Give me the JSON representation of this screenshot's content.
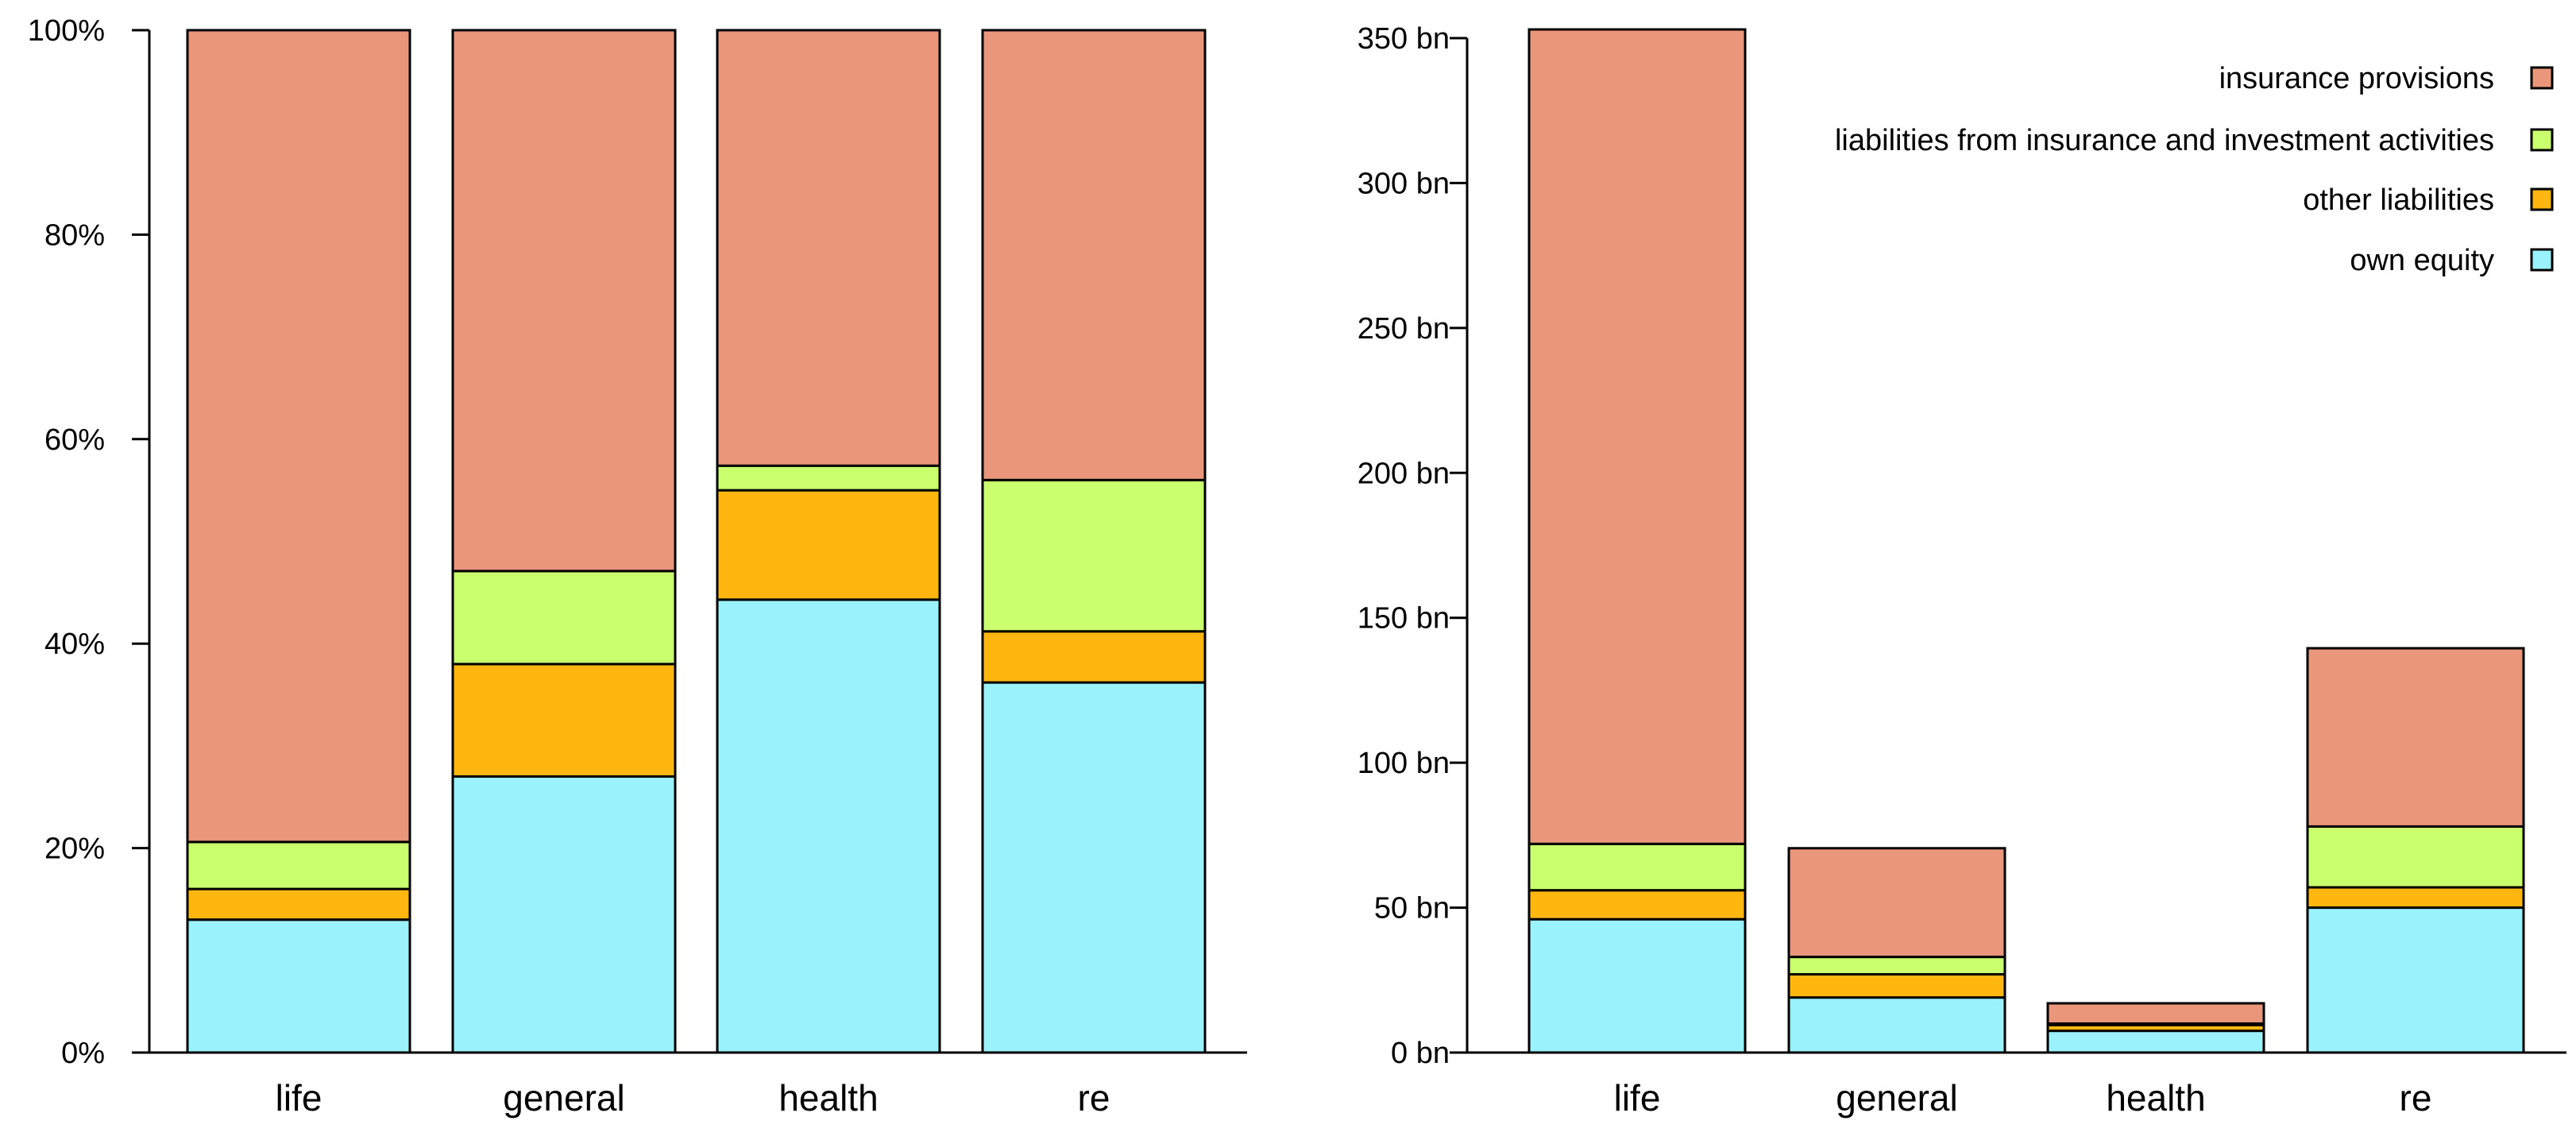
{
  "chart_data": [
    {
      "type": "bar",
      "stacked": true,
      "title": "",
      "xlabel": "",
      "ylabel": "",
      "y_unit": "%",
      "ylim": [
        0,
        100
      ],
      "yticks": [
        0,
        20,
        40,
        60,
        80,
        100
      ],
      "ytick_labels": [
        "0%",
        "20%",
        "40%",
        "60%",
        "80%",
        "100%"
      ],
      "grid": false,
      "categories": [
        "life",
        "general",
        "health",
        "re"
      ],
      "series": [
        {
          "name": "own equity",
          "color": "#9AF2FD",
          "values": [
            13,
            27,
            44.3,
            36.2
          ]
        },
        {
          "name": "other liabilities",
          "color": "#FFB710",
          "values": [
            3,
            11,
            10.7,
            5
          ]
        },
        {
          "name": "liabilities from insurance and investment activities",
          "color": "#CAFF6E",
          "values": [
            4.6,
            9.1,
            2.4,
            14.8
          ]
        },
        {
          "name": "insurance provisions",
          "color": "#E9967A",
          "values": [
            79.4,
            52.9,
            42.6,
            44
          ]
        }
      ]
    },
    {
      "type": "bar",
      "stacked": true,
      "title": "",
      "xlabel": "",
      "ylabel": "",
      "y_unit": "bn",
      "ylim": [
        0,
        350
      ],
      "yticks": [
        0,
        50,
        100,
        150,
        200,
        250,
        300,
        350
      ],
      "ytick_labels": [
        "0 bn",
        "50 bn",
        "100 bn",
        "150 bn",
        "200 bn",
        "250 bn",
        "300 bn",
        "350 bn"
      ],
      "grid": false,
      "legend_position": "top-right",
      "categories": [
        "life",
        "general",
        "health",
        "re"
      ],
      "series": [
        {
          "name": "own equity",
          "color": "#9AF2FD",
          "values": [
            46,
            19,
            7.5,
            50
          ]
        },
        {
          "name": "other liabilities",
          "color": "#FFB710",
          "values": [
            10,
            8,
            2,
            7
          ]
        },
        {
          "name": "liabilities from insurance and investment activities",
          "color": "#CAFF6E",
          "values": [
            16,
            6,
            0.5,
            21
          ]
        },
        {
          "name": "insurance provisions",
          "color": "#E9967A",
          "values": [
            281,
            37.5,
            7,
            61.5
          ]
        }
      ]
    }
  ],
  "legend": {
    "entries": [
      {
        "label": "insurance provisions",
        "color": "#E9967A"
      },
      {
        "label": "liabilities from insurance and investment activities",
        "color": "#CAFF6E"
      },
      {
        "label": "other liabilities",
        "color": "#FFB710"
      },
      {
        "label": "own equity",
        "color": "#9AF2FD"
      }
    ]
  }
}
